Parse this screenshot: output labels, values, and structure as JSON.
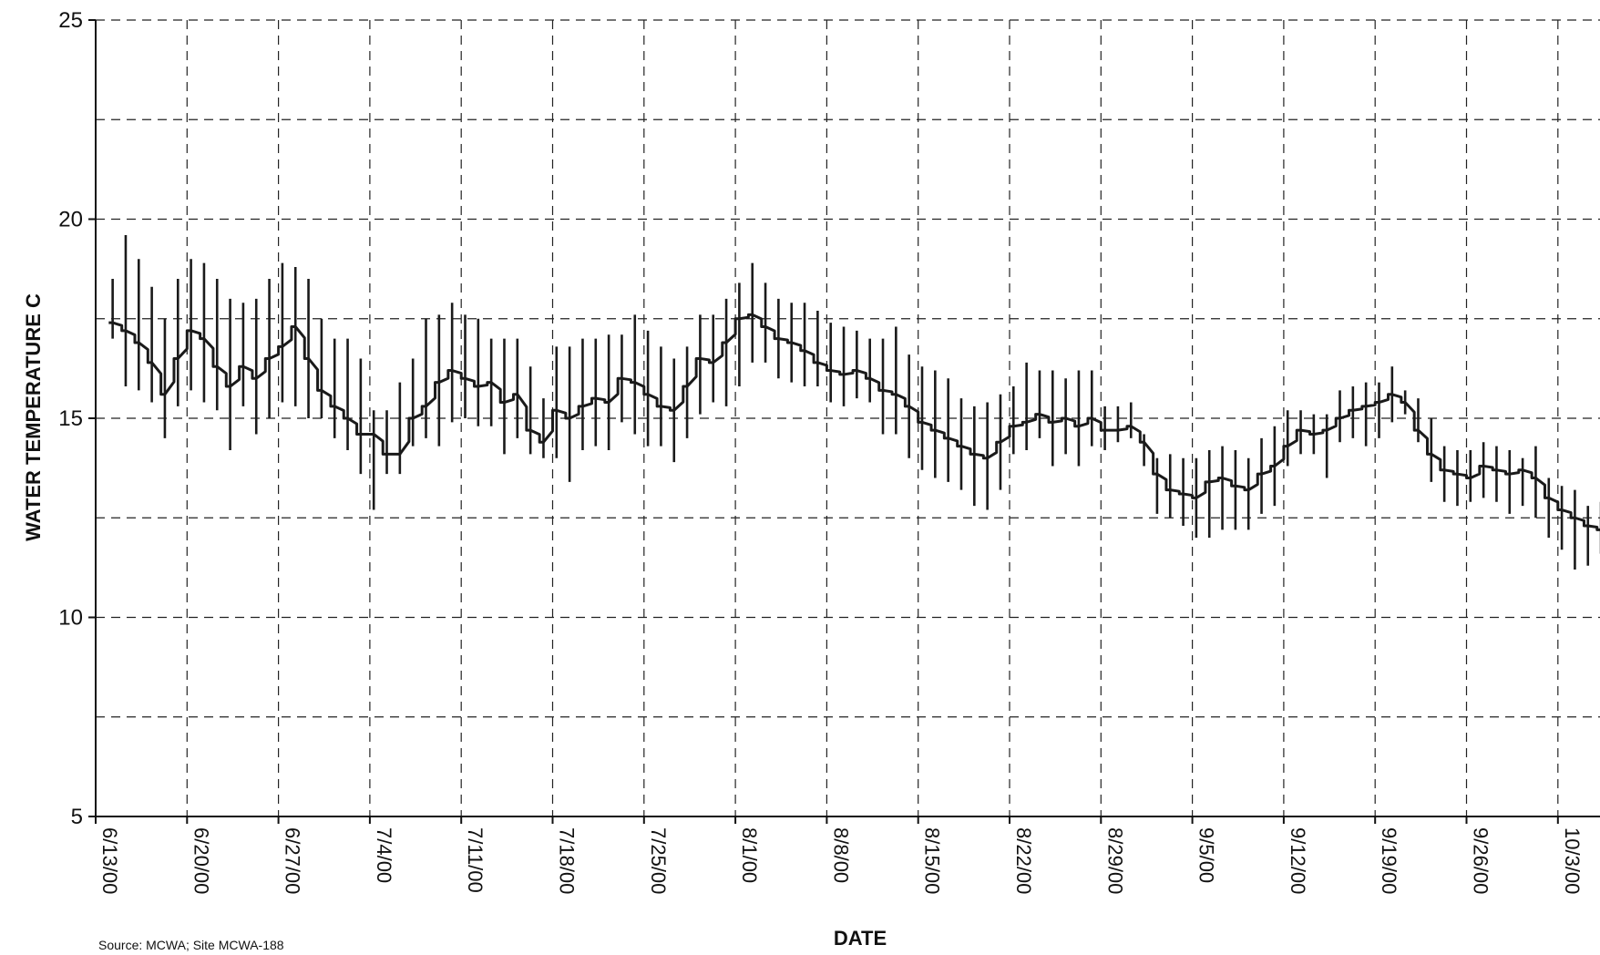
{
  "chart_data": {
    "type": "line",
    "title": "",
    "xlabel": "DATE",
    "ylabel": "WATER TEMPERATURE C",
    "source": "Source: MCWA; Site MCWA-188",
    "ylim": [
      5,
      25
    ],
    "y_ticks": [
      5,
      10,
      15,
      20,
      25
    ],
    "y_minor_gridlines": [
      7.5,
      12.5,
      17.5,
      22.5
    ],
    "x_tick_labels": [
      "6/13/00",
      "6/20/00",
      "6/27/00",
      "7/4/00",
      "7/11/00",
      "7/18/00",
      "7/25/00",
      "8/1/00",
      "8/8/00",
      "8/15/00",
      "8/22/00",
      "8/29/00",
      "9/5/00",
      "9/12/00",
      "9/19/00",
      "9/26/00",
      "10/3/00"
    ],
    "xlim": [
      "2000-06-13",
      "2000-10-07"
    ],
    "grid": true,
    "grid_style": "dashed",
    "line_color": "#1a1a1a",
    "series": [
      {
        "daily_mean": [
          [
            "2000-06-14",
            17.4
          ],
          [
            "2000-06-15",
            17.2
          ],
          [
            "2000-06-16",
            16.9
          ],
          [
            "2000-06-17",
            16.4
          ],
          [
            "2000-06-18",
            15.6
          ],
          [
            "2000-06-19",
            16.5
          ],
          [
            "2000-06-20",
            17.2
          ],
          [
            "2000-06-21",
            17.0
          ],
          [
            "2000-06-22",
            16.3
          ],
          [
            "2000-06-23",
            15.8
          ],
          [
            "2000-06-24",
            16.3
          ],
          [
            "2000-06-25",
            16.0
          ],
          [
            "2000-06-26",
            16.5
          ],
          [
            "2000-06-27",
            16.8
          ],
          [
            "2000-06-28",
            17.3
          ],
          [
            "2000-06-29",
            16.5
          ],
          [
            "2000-06-30",
            15.7
          ],
          [
            "2000-07-01",
            15.3
          ],
          [
            "2000-07-02",
            15.0
          ],
          [
            "2000-07-03",
            14.6
          ],
          [
            "2000-07-04",
            14.6
          ],
          [
            "2000-07-05",
            14.1
          ],
          [
            "2000-07-06",
            14.1
          ],
          [
            "2000-07-07",
            15.0
          ],
          [
            "2000-07-08",
            15.3
          ],
          [
            "2000-07-09",
            15.9
          ],
          [
            "2000-07-10",
            16.2
          ],
          [
            "2000-07-11",
            16.0
          ],
          [
            "2000-07-12",
            15.8
          ],
          [
            "2000-07-13",
            15.9
          ],
          [
            "2000-07-14",
            15.4
          ],
          [
            "2000-07-15",
            15.6
          ],
          [
            "2000-07-16",
            14.7
          ],
          [
            "2000-07-17",
            14.4
          ],
          [
            "2000-07-18",
            15.2
          ],
          [
            "2000-07-19",
            15.0
          ],
          [
            "2000-07-20",
            15.3
          ],
          [
            "2000-07-21",
            15.5
          ],
          [
            "2000-07-22",
            15.4
          ],
          [
            "2000-07-23",
            16.0
          ],
          [
            "2000-07-24",
            15.9
          ],
          [
            "2000-07-25",
            15.6
          ],
          [
            "2000-07-26",
            15.3
          ],
          [
            "2000-07-27",
            15.2
          ],
          [
            "2000-07-28",
            15.8
          ],
          [
            "2000-07-29",
            16.5
          ],
          [
            "2000-07-30",
            16.4
          ],
          [
            "2000-07-31",
            16.9
          ],
          [
            "2000-08-01",
            17.5
          ],
          [
            "2000-08-02",
            17.6
          ],
          [
            "2000-08-03",
            17.3
          ],
          [
            "2000-08-04",
            17.0
          ],
          [
            "2000-08-05",
            16.9
          ],
          [
            "2000-08-06",
            16.7
          ],
          [
            "2000-08-07",
            16.4
          ],
          [
            "2000-08-08",
            16.2
          ],
          [
            "2000-08-09",
            16.1
          ],
          [
            "2000-08-10",
            16.2
          ],
          [
            "2000-08-11",
            16.0
          ],
          [
            "2000-08-12",
            15.7
          ],
          [
            "2000-08-13",
            15.6
          ],
          [
            "2000-08-14",
            15.3
          ],
          [
            "2000-08-15",
            14.9
          ],
          [
            "2000-08-16",
            14.7
          ],
          [
            "2000-08-17",
            14.5
          ],
          [
            "2000-08-18",
            14.3
          ],
          [
            "2000-08-19",
            14.1
          ],
          [
            "2000-08-20",
            14.0
          ],
          [
            "2000-08-21",
            14.4
          ],
          [
            "2000-08-22",
            14.8
          ],
          [
            "2000-08-23",
            14.9
          ],
          [
            "2000-08-24",
            15.1
          ],
          [
            "2000-08-25",
            14.9
          ],
          [
            "2000-08-26",
            15.0
          ],
          [
            "2000-08-27",
            14.8
          ],
          [
            "2000-08-28",
            15.0
          ],
          [
            "2000-08-29",
            14.7
          ],
          [
            "2000-08-30",
            14.7
          ],
          [
            "2000-08-31",
            14.8
          ],
          [
            "2000-09-01",
            14.4
          ],
          [
            "2000-09-02",
            13.6
          ],
          [
            "2000-09-03",
            13.2
          ],
          [
            "2000-09-04",
            13.1
          ],
          [
            "2000-09-05",
            13.0
          ],
          [
            "2000-09-06",
            13.4
          ],
          [
            "2000-09-07",
            13.5
          ],
          [
            "2000-09-08",
            13.3
          ],
          [
            "2000-09-09",
            13.2
          ],
          [
            "2000-09-10",
            13.6
          ],
          [
            "2000-09-11",
            13.8
          ],
          [
            "2000-09-12",
            14.3
          ],
          [
            "2000-09-13",
            14.7
          ],
          [
            "2000-09-14",
            14.6
          ],
          [
            "2000-09-15",
            14.7
          ],
          [
            "2000-09-16",
            15.0
          ],
          [
            "2000-09-17",
            15.2
          ],
          [
            "2000-09-18",
            15.3
          ],
          [
            "2000-09-19",
            15.4
          ],
          [
            "2000-09-20",
            15.6
          ],
          [
            "2000-09-21",
            15.4
          ],
          [
            "2000-09-22",
            14.7
          ],
          [
            "2000-09-23",
            14.1
          ],
          [
            "2000-09-24",
            13.7
          ],
          [
            "2000-09-25",
            13.6
          ],
          [
            "2000-09-26",
            13.5
          ],
          [
            "2000-09-27",
            13.8
          ],
          [
            "2000-09-28",
            13.7
          ],
          [
            "2000-09-29",
            13.6
          ],
          [
            "2000-09-30",
            13.7
          ],
          [
            "2000-10-01",
            13.5
          ],
          [
            "2000-10-02",
            13.0
          ],
          [
            "2000-10-03",
            12.7
          ],
          [
            "2000-10-04",
            12.5
          ],
          [
            "2000-10-05",
            12.3
          ],
          [
            "2000-10-06",
            12.2
          ]
        ],
        "daily_min_max": [
          [
            "2000-06-14",
            17.0,
            18.5
          ],
          [
            "2000-06-15",
            15.8,
            19.6
          ],
          [
            "2000-06-16",
            15.7,
            19.0
          ],
          [
            "2000-06-17",
            15.4,
            18.3
          ],
          [
            "2000-06-18",
            14.5,
            17.5
          ],
          [
            "2000-06-19",
            15.3,
            18.5
          ],
          [
            "2000-06-20",
            15.7,
            19.0
          ],
          [
            "2000-06-21",
            15.4,
            18.9
          ],
          [
            "2000-06-22",
            15.2,
            18.5
          ],
          [
            "2000-06-23",
            14.2,
            18.0
          ],
          [
            "2000-06-24",
            15.3,
            17.9
          ],
          [
            "2000-06-25",
            14.6,
            18.0
          ],
          [
            "2000-06-26",
            15.0,
            18.5
          ],
          [
            "2000-06-27",
            15.4,
            18.9
          ],
          [
            "2000-06-28",
            15.3,
            18.8
          ],
          [
            "2000-06-29",
            15.0,
            18.5
          ],
          [
            "2000-06-30",
            15.0,
            17.5
          ],
          [
            "2000-07-01",
            14.5,
            17.0
          ],
          [
            "2000-07-02",
            14.2,
            17.0
          ],
          [
            "2000-07-03",
            13.6,
            16.5
          ],
          [
            "2000-07-04",
            12.7,
            15.2
          ],
          [
            "2000-07-05",
            13.6,
            15.2
          ],
          [
            "2000-07-06",
            13.6,
            15.9
          ],
          [
            "2000-07-07",
            14.3,
            16.5
          ],
          [
            "2000-07-08",
            14.5,
            17.5
          ],
          [
            "2000-07-09",
            14.3,
            17.6
          ],
          [
            "2000-07-10",
            14.9,
            17.9
          ],
          [
            "2000-07-11",
            15.0,
            17.6
          ],
          [
            "2000-07-12",
            14.8,
            17.5
          ],
          [
            "2000-07-13",
            14.8,
            17.0
          ],
          [
            "2000-07-14",
            14.1,
            17.0
          ],
          [
            "2000-07-15",
            14.5,
            17.0
          ],
          [
            "2000-07-16",
            14.1,
            16.3
          ],
          [
            "2000-07-17",
            14.0,
            15.5
          ],
          [
            "2000-07-18",
            14.0,
            16.8
          ],
          [
            "2000-07-19",
            13.4,
            16.8
          ],
          [
            "2000-07-20",
            14.2,
            17.0
          ],
          [
            "2000-07-21",
            14.3,
            17.0
          ],
          [
            "2000-07-22",
            14.2,
            17.1
          ],
          [
            "2000-07-23",
            14.9,
            17.1
          ],
          [
            "2000-07-24",
            14.6,
            17.6
          ],
          [
            "2000-07-25",
            14.3,
            17.2
          ],
          [
            "2000-07-26",
            14.3,
            16.8
          ],
          [
            "2000-07-27",
            13.9,
            16.5
          ],
          [
            "2000-07-28",
            14.5,
            16.8
          ],
          [
            "2000-07-29",
            15.1,
            17.6
          ],
          [
            "2000-07-30",
            15.4,
            17.6
          ],
          [
            "2000-07-31",
            15.3,
            18.0
          ],
          [
            "2000-08-01",
            15.8,
            18.4
          ],
          [
            "2000-08-02",
            16.4,
            18.9
          ],
          [
            "2000-08-03",
            16.4,
            18.4
          ],
          [
            "2000-08-04",
            16.0,
            18.0
          ],
          [
            "2000-08-05",
            15.9,
            17.9
          ],
          [
            "2000-08-06",
            15.8,
            17.9
          ],
          [
            "2000-08-07",
            15.8,
            17.7
          ],
          [
            "2000-08-08",
            15.4,
            17.4
          ],
          [
            "2000-08-09",
            15.3,
            17.3
          ],
          [
            "2000-08-10",
            15.5,
            17.2
          ],
          [
            "2000-08-11",
            15.4,
            17.0
          ],
          [
            "2000-08-12",
            14.6,
            17.0
          ],
          [
            "2000-08-13",
            14.6,
            17.3
          ],
          [
            "2000-08-14",
            14.0,
            16.6
          ],
          [
            "2000-08-15",
            13.7,
            16.3
          ],
          [
            "2000-08-16",
            13.5,
            16.2
          ],
          [
            "2000-08-17",
            13.4,
            16.0
          ],
          [
            "2000-08-18",
            13.2,
            15.5
          ],
          [
            "2000-08-19",
            12.8,
            15.3
          ],
          [
            "2000-08-20",
            12.7,
            15.4
          ],
          [
            "2000-08-21",
            13.2,
            15.6
          ],
          [
            "2000-08-22",
            14.1,
            15.8
          ],
          [
            "2000-08-23",
            14.2,
            16.4
          ],
          [
            "2000-08-24",
            14.5,
            16.2
          ],
          [
            "2000-08-25",
            13.8,
            16.2
          ],
          [
            "2000-08-26",
            14.1,
            16.0
          ],
          [
            "2000-08-27",
            13.8,
            16.2
          ],
          [
            "2000-08-28",
            14.3,
            16.2
          ],
          [
            "2000-08-29",
            14.2,
            15.3
          ],
          [
            "2000-08-30",
            14.4,
            15.3
          ],
          [
            "2000-08-31",
            14.5,
            15.4
          ],
          [
            "2000-09-01",
            13.8,
            14.6
          ],
          [
            "2000-09-02",
            12.6,
            14.0
          ],
          [
            "2000-09-03",
            12.5,
            14.1
          ],
          [
            "2000-09-04",
            12.3,
            14.0
          ],
          [
            "2000-09-05",
            12.0,
            14.0
          ],
          [
            "2000-09-06",
            12.0,
            14.2
          ],
          [
            "2000-09-07",
            12.2,
            14.3
          ],
          [
            "2000-09-08",
            12.2,
            14.2
          ],
          [
            "2000-09-09",
            12.2,
            14.0
          ],
          [
            "2000-09-10",
            12.6,
            14.5
          ],
          [
            "2000-09-11",
            12.8,
            14.8
          ],
          [
            "2000-09-12",
            13.8,
            15.2
          ],
          [
            "2000-09-13",
            14.1,
            15.2
          ],
          [
            "2000-09-14",
            14.1,
            15.1
          ],
          [
            "2000-09-15",
            13.5,
            15.1
          ],
          [
            "2000-09-16",
            14.4,
            15.7
          ],
          [
            "2000-09-17",
            14.5,
            15.8
          ],
          [
            "2000-09-18",
            14.3,
            15.9
          ],
          [
            "2000-09-19",
            14.5,
            15.9
          ],
          [
            "2000-09-20",
            14.9,
            16.3
          ],
          [
            "2000-09-21",
            15.1,
            15.7
          ],
          [
            "2000-09-22",
            14.4,
            15.5
          ],
          [
            "2000-09-23",
            13.4,
            15.0
          ],
          [
            "2000-09-24",
            12.9,
            14.3
          ],
          [
            "2000-09-25",
            12.8,
            14.2
          ],
          [
            "2000-09-26",
            12.9,
            14.2
          ],
          [
            "2000-09-27",
            13.0,
            14.4
          ],
          [
            "2000-09-28",
            12.9,
            14.3
          ],
          [
            "2000-09-29",
            12.6,
            14.2
          ],
          [
            "2000-09-30",
            12.8,
            14.0
          ],
          [
            "2000-10-01",
            12.5,
            14.3
          ],
          [
            "2000-10-02",
            12.0,
            13.5
          ],
          [
            "2000-10-03",
            11.7,
            13.3
          ],
          [
            "2000-10-04",
            11.2,
            13.2
          ],
          [
            "2000-10-05",
            11.3,
            12.8
          ],
          [
            "2000-10-06",
            11.6,
            12.9
          ]
        ]
      }
    ]
  }
}
